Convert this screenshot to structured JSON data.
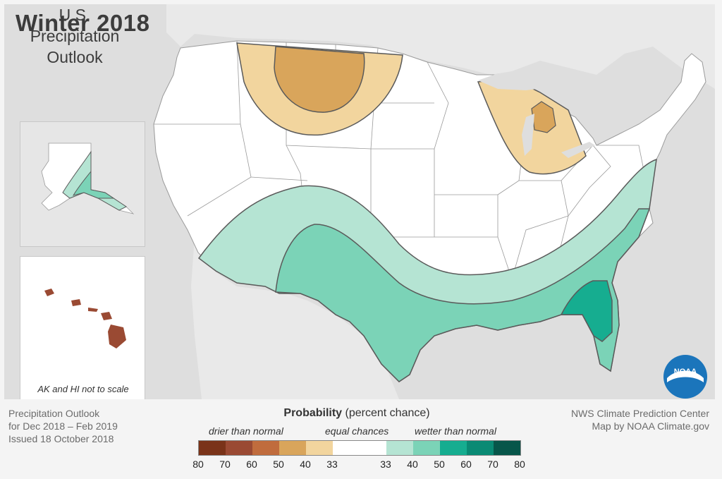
{
  "title": "Winter 2018",
  "subtitle": [
    "U.S.",
    "Precipitation",
    "Outlook"
  ],
  "inset_note": "AK and HI not to scale",
  "footer_left": [
    "Precipitation Outlook",
    "for Dec 2018 – Feb 2019",
    "Issued 18 October 2018"
  ],
  "footer_right": [
    "NWS Climate Prediction Center",
    "Map by NOAA Climate.gov"
  ],
  "legend": {
    "title_bold": "Probability",
    "title_rest": " (percent chance)",
    "cat_drier": "drier than normal",
    "cat_equal": "equal chances",
    "cat_wetter": "wetter than normal",
    "ticks": [
      "80",
      "70",
      "60",
      "50",
      "40",
      "33",
      "33",
      "40",
      "50",
      "60",
      "70",
      "80"
    ],
    "swatches": [
      "#7a3319",
      "#9a4a33",
      "#c06c3d",
      "#d9a55b",
      "#f2d59e",
      "#ffffff",
      "#ffffff",
      "#b5e4d3",
      "#7bd3b7",
      "#16ad90",
      "#0a8a74",
      "#07564a"
    ]
  },
  "colors": {
    "drier_33_40": "#f2d59e",
    "drier_40_50": "#d9a55b",
    "drier_70_80": "#9a4a33",
    "wetter_33_40": "#b5e4d3",
    "wetter_40_50": "#7bd3b7",
    "wetter_50_60": "#16ad90",
    "water": "#dedede",
    "land_outside": "#e9e9e9",
    "noaa_blue": "#1b75bb"
  },
  "logo_text": "NOAA"
}
